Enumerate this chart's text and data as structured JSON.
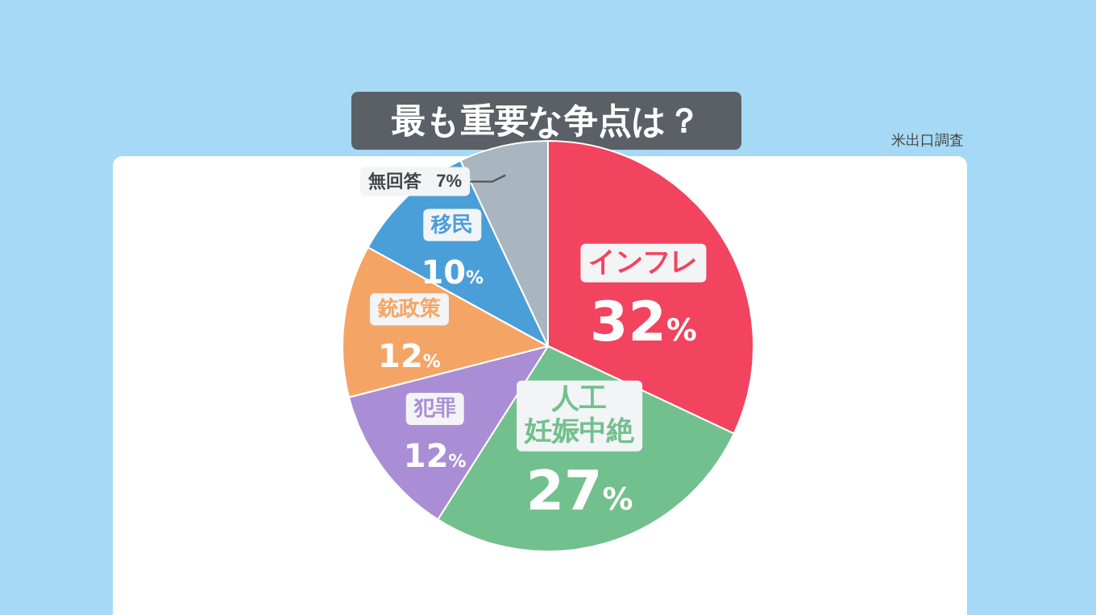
{
  "chart_data": {
    "type": "pie",
    "title": "最も重要な争点は？",
    "annotations": [
      "米出口調査"
    ],
    "categories": [
      "インフレ",
      "人工妊娠中絶",
      "犯罪",
      "銃政策",
      "移民",
      "無回答"
    ],
    "values": [
      32,
      27,
      12,
      12,
      10,
      7
    ],
    "value_labels": [
      "32%",
      "27%",
      "12%",
      "12%",
      "10%",
      "7%"
    ],
    "colors": [
      "#f2435f",
      "#72c08e",
      "#a98ed6",
      "#f4a566",
      "#4a9fd8",
      "#a9b6c0"
    ],
    "legend": false
  }
}
